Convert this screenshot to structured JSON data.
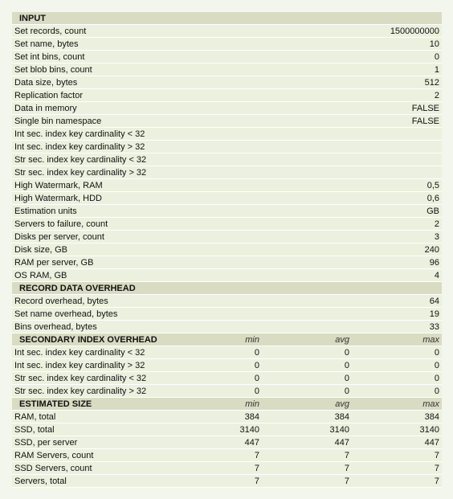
{
  "input": {
    "title": "INPUT",
    "rows": [
      {
        "label": "Set records, count",
        "value": "1500000000"
      },
      {
        "label": "Set name, bytes",
        "value": "10"
      },
      {
        "label": "Set int bins, count",
        "value": "0"
      },
      {
        "label": "Set blob bins, count",
        "value": "1"
      },
      {
        "label": "Data size, bytes",
        "value": "512"
      },
      {
        "label": "Replication factor",
        "value": "2"
      },
      {
        "label": "Data in memory",
        "value": "FALSE"
      },
      {
        "label": "Single bin namespace",
        "value": "FALSE"
      },
      {
        "label": "Int sec. index key cardinality < 32",
        "value": ""
      },
      {
        "label": "Int sec. index key cardinality > 32",
        "value": ""
      },
      {
        "label": "Str sec. index key cardinality < 32",
        "value": ""
      },
      {
        "label": "Str sec. index key cardinality > 32",
        "value": ""
      },
      {
        "label": "High Watermark, RAM",
        "value": "0,5"
      },
      {
        "label": "High Watermark, HDD",
        "value": "0,6"
      },
      {
        "label": "Estimation units",
        "value": "GB"
      },
      {
        "label": "Servers to failure, count",
        "value": "2"
      },
      {
        "label": "Disks per server, count",
        "value": "3"
      },
      {
        "label": "Disk size, GB",
        "value": "240"
      },
      {
        "label": "RAM per server, GB",
        "value": "96"
      },
      {
        "label": "OS RAM, GB",
        "value": "4"
      }
    ]
  },
  "record_overhead": {
    "title": "RECORD DATA OVERHEAD",
    "rows": [
      {
        "label": "Record overhead, bytes",
        "value": "64"
      },
      {
        "label": "Set name overhead, bytes",
        "value": "19"
      },
      {
        "label": "Bins overhead, bytes",
        "value": "33"
      }
    ]
  },
  "index_overhead": {
    "title": "SECONDARY INDEX OVERHEAD",
    "col_min": "min",
    "col_avg": "avg",
    "col_max": "max",
    "rows": [
      {
        "label": "Int sec. index key cardinality < 32",
        "min": "0",
        "avg": "0",
        "max": "0"
      },
      {
        "label": "Int sec. index key cardinality > 32",
        "min": "0",
        "avg": "0",
        "max": "0"
      },
      {
        "label": "Str sec. index key cardinality < 32",
        "min": "0",
        "avg": "0",
        "max": "0"
      },
      {
        "label": "Str sec. index key cardinality > 32",
        "min": "0",
        "avg": "0",
        "max": "0"
      }
    ]
  },
  "estimated_size": {
    "title": "ESTIMATED SIZE",
    "col_min": "min",
    "col_avg": "avg",
    "col_max": "max",
    "rows": [
      {
        "label": "RAM, total",
        "min": "384",
        "avg": "384",
        "max": "384"
      },
      {
        "label": "SSD, total",
        "min": "3140",
        "avg": "3140",
        "max": "3140"
      },
      {
        "label": "SSD, per server",
        "min": "447",
        "avg": "447",
        "max": "447"
      },
      {
        "label": "RAM Servers, count",
        "min": "7",
        "avg": "7",
        "max": "7"
      },
      {
        "label": "SSD Servers, count",
        "min": "7",
        "avg": "7",
        "max": "7"
      },
      {
        "label": "Servers, total",
        "min": "7",
        "avg": "7",
        "max": "7"
      }
    ]
  }
}
